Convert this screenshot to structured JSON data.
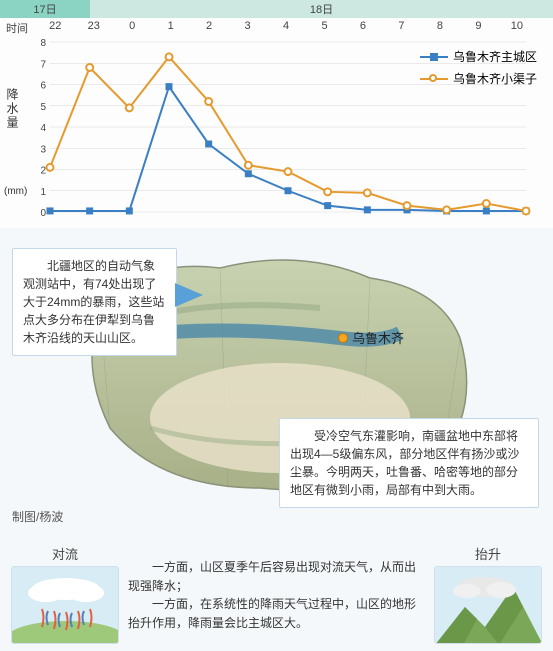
{
  "dates": {
    "d17": "17日",
    "d18": "18日"
  },
  "chart": {
    "type": "line",
    "x_title": "时间",
    "x_labels": [
      "22",
      "23",
      "0",
      "1",
      "2",
      "3",
      "4",
      "5",
      "6",
      "7",
      "8",
      "9",
      "10"
    ],
    "y_label": "降水量",
    "y_unit": "(mm)",
    "ylim": [
      0,
      8
    ],
    "ytick_step": 1,
    "series": [
      {
        "name": "乌鲁木齐主城区",
        "color": "#3a7fc4",
        "marker": "square",
        "values": [
          0.05,
          0.05,
          0.05,
          5.9,
          3.2,
          1.8,
          1.0,
          0.3,
          0.1,
          0.1,
          0.05,
          0.05,
          0.05
        ]
      },
      {
        "name": "乌鲁木齐小渠子",
        "color": "#e59a2e",
        "marker": "circle",
        "values": [
          2.1,
          6.8,
          4.9,
          7.3,
          5.2,
          2.2,
          1.9,
          0.95,
          0.9,
          0.3,
          0.1,
          0.4,
          0.05
        ]
      }
    ],
    "grid_color": "#d8d8d8",
    "line_width": 2,
    "marker_size": 7,
    "bg": "#fdfdfd"
  },
  "callouts": {
    "north": "　　北疆地区的自动气象观测站中，有74处出现了大于24mm的暴雨，这些站点大多分布在伊犁到乌鲁木齐沿线的天山山区。",
    "south": "　　受冷空气东灌影响，南疆盆地中东部将出现4—5级偏东风，部分地区伴有扬沙或沙尘暴。今明两天，吐鲁番、哈密等地的部分地区有微到小雨，局部有中到大雨。"
  },
  "city": "乌鲁木齐",
  "credit": "制图/杨波",
  "bottom": {
    "left_title": "对流",
    "right_title": "抬升",
    "para1": "一方面，山区夏季午后容易出现对流天气，从而出现强降水；",
    "para2": "一方面，在系统性的降雨天气过程中，山区的地形抬升作用，降雨量会比主城区大。"
  },
  "map": {
    "terrain_hi": "#b8c49a",
    "terrain_lo": "#d9e0c8",
    "basin": "#e8e0c8",
    "water": "#5aa0c8",
    "edge": "#8a9178",
    "city_color": "#f5a623"
  }
}
